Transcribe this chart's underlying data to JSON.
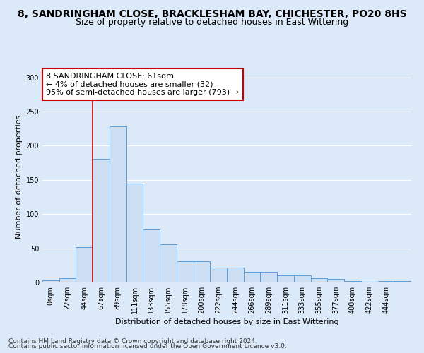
{
  "title": "8, SANDRINGHAM CLOSE, BRACKLESHAM BAY, CHICHESTER, PO20 8HS",
  "subtitle": "Size of property relative to detached houses in East Wittering",
  "xlabel": "Distribution of detached houses by size in East Wittering",
  "ylabel": "Number of detached properties",
  "footnote1": "Contains HM Land Registry data © Crown copyright and database right 2024.",
  "footnote2": "Contains public sector information licensed under the Open Government Licence v3.0.",
  "bar_values": [
    3,
    6,
    52,
    181,
    228,
    145,
    77,
    56,
    31,
    31,
    22,
    22,
    16,
    16,
    10,
    10,
    6,
    5,
    2,
    1,
    2,
    2
  ],
  "bar_labels": [
    "0sqm",
    "22sqm",
    "44sqm",
    "67sqm",
    "89sqm",
    "111sqm",
    "133sqm",
    "155sqm",
    "178sqm",
    "200sqm",
    "222sqm",
    "244sqm",
    "266sqm",
    "289sqm",
    "311sqm",
    "333sqm",
    "355sqm",
    "377sqm",
    "400sqm",
    "422sqm",
    "444sqm",
    ""
  ],
  "bar_color": "#ccdff3",
  "bar_edge_color": "#5b9bd5",
  "vline_x": 2.5,
  "vline_color": "#cc0000",
  "annotation_text": "8 SANDRINGHAM CLOSE: 61sqm\n← 4% of detached houses are smaller (32)\n95% of semi-detached houses are larger (793) →",
  "annotation_box_color": "#ffffff",
  "annotation_box_edge_color": "#cc0000",
  "ylim": [
    0,
    310
  ],
  "background_color": "#dce9f8",
  "grid_color": "#ffffff",
  "title_fontsize": 10,
  "subtitle_fontsize": 9,
  "axis_label_fontsize": 8,
  "tick_fontsize": 7,
  "annotation_fontsize": 8,
  "footnote_fontsize": 6.5
}
